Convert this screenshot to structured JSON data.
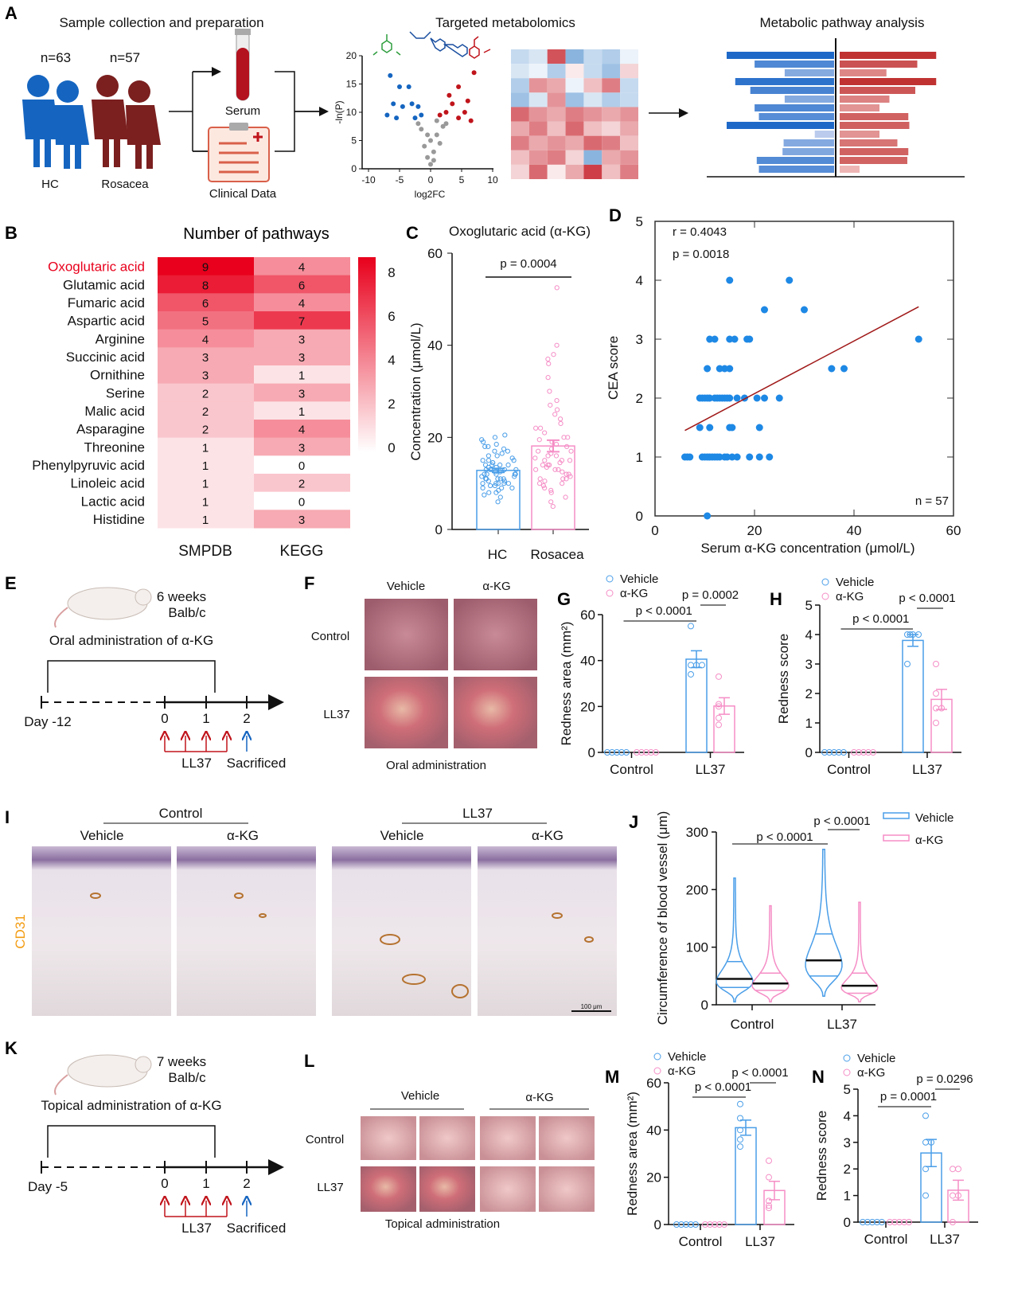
{
  "panels": {
    "A": {
      "label": "A",
      "title_left": "Sample collection and preparation",
      "n_hc": "n=63",
      "n_ros": "n=57",
      "hc": "HC",
      "rosacea": "Rosacea",
      "serum": "Serum",
      "clinical": "Clinical Data",
      "title_mid": "Targeted metabolomics",
      "title_right": "Metabolic pathway analysis"
    },
    "B": {
      "label": "B"
    },
    "C": {
      "label": "C"
    },
    "D": {
      "label": "D"
    },
    "E": {
      "label": "E",
      "age": "6 weeks",
      "strain": "Balb/c",
      "admin": "Oral administration of α-KG",
      "day": "Day -12",
      "t0": "0",
      "t1": "1",
      "t2": "2",
      "ll37": "LL37",
      "sacrificed": "Sacrificed"
    },
    "F": {
      "label": "F",
      "col1": "Vehicle",
      "col2": "α-KG",
      "row1": "Control",
      "row2": "LL37",
      "caption": "Oral administration"
    },
    "G": {
      "label": "G"
    },
    "H": {
      "label": "H"
    },
    "I": {
      "label": "I",
      "group1": "Control",
      "group2": "LL37",
      "vehicle": "Vehicle",
      "akg": "α-KG",
      "stain": "CD31",
      "scale": "100 μm"
    },
    "J": {
      "label": "J"
    },
    "K": {
      "label": "K",
      "age": "7 weeks",
      "strain": "Balb/c",
      "admin": "Topical administration of α-KG",
      "day": "Day -5",
      "t0": "0",
      "t1": "1",
      "t2": "2",
      "ll37": "LL37",
      "sacrificed": "Sacrificed"
    },
    "L": {
      "label": "L",
      "col1": "Vehicle",
      "col2": "α-KG",
      "row1": "Control",
      "row2": "LL37",
      "caption": "Topical administration"
    },
    "M": {
      "label": "M"
    },
    "N": {
      "label": "N"
    }
  },
  "colors": {
    "blue": "#4a9ee8",
    "pink": "#f58ec6",
    "red": "#e8001c",
    "dot_blue": "#1e88e5",
    "fit_line": "#a01818",
    "orange": "#f39c12"
  },
  "chart_data": [
    {
      "panel": "A-volcano",
      "type": "scatter",
      "xlabel": "log2FC",
      "ylabel": "-ln(P)",
      "xlim": [
        -10,
        10
      ],
      "ylim": [
        0,
        20
      ],
      "xticks": [
        "-10",
        "-5",
        "0",
        "5",
        "10"
      ],
      "yticks": [
        "0",
        "5",
        "10",
        "15",
        "20"
      ],
      "down": [
        [
          -6.5,
          16.5
        ],
        [
          -5,
          14.5
        ],
        [
          -3.5,
          14.5
        ],
        [
          -6,
          11.5
        ],
        [
          -4.5,
          11
        ],
        [
          -3,
          11.5
        ],
        [
          -2,
          11
        ],
        [
          -7,
          9.5
        ],
        [
          -5.5,
          9
        ],
        [
          -2.5,
          9
        ],
        [
          -1.5,
          9.5
        ]
      ],
      "up": [
        [
          7,
          17
        ],
        [
          4.5,
          14.5
        ],
        [
          3,
          13
        ],
        [
          6,
          12
        ],
        [
          3.5,
          11.5
        ],
        [
          5.5,
          10
        ],
        [
          2.5,
          10
        ],
        [
          4.5,
          9
        ],
        [
          6.5,
          8.5
        ],
        [
          1.5,
          9.5
        ]
      ],
      "ns": [
        [
          -1.5,
          7
        ],
        [
          -0.5,
          6
        ],
        [
          0,
          5
        ],
        [
          1,
          6
        ],
        [
          2,
          7.5
        ],
        [
          -1,
          4
        ],
        [
          0.5,
          3
        ],
        [
          1.5,
          4.5
        ],
        [
          -0.5,
          2
        ],
        [
          0.5,
          1.5
        ],
        [
          0,
          0.8
        ],
        [
          -2,
          8
        ],
        [
          2.5,
          8
        ],
        [
          1,
          8.5
        ]
      ]
    },
    {
      "panel": "A-heatmap",
      "type": "heatmap",
      "values": [
        [
          -0.3,
          -0.2,
          0.8,
          -0.6,
          -0.3,
          -0.4,
          -0.1
        ],
        [
          -0.2,
          -0.1,
          -0.4,
          0.1,
          -0.3,
          -0.5,
          0.2
        ],
        [
          -0.4,
          0.5,
          0.4,
          -0.1,
          0.3,
          0.6,
          -0.3
        ],
        [
          -0.5,
          -0.2,
          0.5,
          -0.5,
          -0.2,
          -0.4,
          -0.3
        ],
        [
          0.7,
          0.5,
          0.4,
          0.6,
          0.5,
          0.4,
          0.5
        ],
        [
          0.4,
          0.6,
          0.3,
          0.7,
          0.3,
          0.2,
          0.4
        ],
        [
          0.6,
          0.4,
          0.5,
          0.4,
          0.7,
          0.6,
          0.3
        ],
        [
          0.3,
          0.5,
          0.6,
          0.2,
          -0.6,
          0.4,
          0.5
        ],
        [
          0.2,
          0.7,
          0.1,
          0.4,
          0.9,
          0.3,
          0.6
        ]
      ]
    },
    {
      "panel": "A-pathway",
      "type": "bar",
      "left": [
        1,
        0.74,
        0.46,
        0.92,
        0.78,
        0.46,
        0.74,
        0.7,
        1,
        0.18,
        0.47,
        0.48,
        0.72,
        0.7
      ],
      "right": [
        0.97,
        0.78,
        0.47,
        0.97,
        0.76,
        0.5,
        0.4,
        0.69,
        0.7,
        0.4,
        0.58,
        0.69,
        0.68,
        0.2
      ]
    },
    {
      "panel": "B",
      "type": "heatmap",
      "title": "Number of pathways",
      "columns": [
        "SMPDB",
        "KEGG"
      ],
      "highlight": "Oxoglutaric acid",
      "rows": [
        "Oxoglutaric acid",
        "Glutamic acid",
        "Fumaric acid",
        "Aspartic acid",
        "Arginine",
        "Succinic acid",
        "Ornithine",
        "Serine",
        "Malic acid",
        "Asparagine",
        "Threonine",
        "Phenylpyruvic acid",
        "Linoleic acid",
        "Lactic acid",
        "Histidine"
      ],
      "values": [
        [
          9,
          4
        ],
        [
          8,
          6
        ],
        [
          6,
          4
        ],
        [
          5,
          7
        ],
        [
          4,
          3
        ],
        [
          3,
          3
        ],
        [
          3,
          1
        ],
        [
          2,
          3
        ],
        [
          2,
          1
        ],
        [
          2,
          4
        ],
        [
          1,
          3
        ],
        [
          1,
          0
        ],
        [
          1,
          2
        ],
        [
          1,
          0
        ],
        [
          1,
          3
        ]
      ],
      "colorbar_ticks": [
        "0",
        "2",
        "4",
        "6",
        "8"
      ],
      "vmin": 0,
      "vmax": 9
    },
    {
      "panel": "C",
      "type": "bar",
      "title": "Oxoglutaric acid (α-KG)",
      "ylabel": "Concentration (μmol/L)",
      "ylim": [
        0,
        60
      ],
      "yticks": [
        "0",
        "20",
        "40",
        "60"
      ],
      "categories": [
        "HC",
        "Rosacea"
      ],
      "pvalue": "p = 0.0004",
      "HC": [
        6,
        7,
        7.5,
        8,
        8,
        8.5,
        9,
        9,
        9,
        9.5,
        9.5,
        10,
        10,
        10,
        10,
        10.5,
        10.5,
        11,
        11,
        11,
        11,
        11.5,
        11.5,
        12,
        12,
        12,
        12,
        12,
        12.5,
        12.5,
        13,
        13,
        13,
        13,
        13.5,
        13.5,
        14,
        14,
        14,
        14,
        14.5,
        14.5,
        15,
        15,
        15,
        15.5,
        16,
        16,
        16.5,
        17,
        17,
        17.5,
        18,
        18,
        18.5,
        19,
        19.5,
        20,
        20.5,
        11,
        12,
        13,
        10
      ],
      "Rosacea": [
        5,
        6,
        7,
        8,
        8.5,
        9,
        9.5,
        10,
        10,
        10.5,
        11,
        11,
        11.5,
        12,
        12,
        12.5,
        13,
        13,
        13,
        13.5,
        14,
        14,
        14,
        14.5,
        15,
        15,
        15,
        15.5,
        16,
        16,
        16.5,
        17,
        17,
        17.5,
        18,
        18.5,
        19,
        19.5,
        20,
        20,
        21,
        22,
        22,
        23,
        24,
        25,
        26,
        27,
        28,
        30,
        33,
        36,
        37,
        38,
        40,
        52.5,
        11
      ]
    },
    {
      "panel": "D",
      "type": "scatter",
      "xlabel": "Serum α-KG concentration  (μmol/L)",
      "ylabel": "CEA score",
      "xlim": [
        0,
        60
      ],
      "ylim": [
        0,
        5
      ],
      "xticks": [
        "0",
        "20",
        "40",
        "60"
      ],
      "yticks": [
        "0",
        "1",
        "2",
        "3",
        "4",
        "5"
      ],
      "r": "r = 0.4043",
      "p": "p = 0.0018",
      "n": "n = 57",
      "points": [
        [
          15,
          4
        ],
        [
          27,
          4
        ],
        [
          22,
          3.5
        ],
        [
          30,
          3.5
        ],
        [
          11,
          3
        ],
        [
          12,
          3
        ],
        [
          15,
          3
        ],
        [
          16,
          3
        ],
        [
          18.5,
          3
        ],
        [
          19,
          3
        ],
        [
          53,
          3
        ],
        [
          10.5,
          2.5
        ],
        [
          13,
          2.5
        ],
        [
          14,
          2.5
        ],
        [
          15,
          2.5
        ],
        [
          35.5,
          2.5
        ],
        [
          38,
          2.5
        ],
        [
          9,
          2
        ],
        [
          9.5,
          2
        ],
        [
          10,
          2
        ],
        [
          10.5,
          2
        ],
        [
          11,
          2
        ],
        [
          12,
          2
        ],
        [
          12.5,
          2
        ],
        [
          13,
          2
        ],
        [
          13.5,
          2
        ],
        [
          14,
          2
        ],
        [
          14.5,
          2
        ],
        [
          15,
          2
        ],
        [
          16.5,
          2
        ],
        [
          18,
          2
        ],
        [
          20.5,
          2
        ],
        [
          22,
          2
        ],
        [
          25,
          2
        ],
        [
          9,
          1.5
        ],
        [
          11,
          1.5
        ],
        [
          15,
          1.5
        ],
        [
          15.5,
          1.5
        ],
        [
          21,
          1.5
        ],
        [
          6,
          1
        ],
        [
          6.5,
          1
        ],
        [
          7,
          1
        ],
        [
          9.5,
          1
        ],
        [
          10,
          1
        ],
        [
          10.5,
          1
        ],
        [
          11,
          1
        ],
        [
          11.5,
          1
        ],
        [
          12,
          1
        ],
        [
          12.5,
          1
        ],
        [
          13,
          1
        ],
        [
          14,
          1
        ],
        [
          14.5,
          1
        ],
        [
          15.5,
          1
        ],
        [
          16.5,
          1
        ],
        [
          19,
          1
        ],
        [
          21,
          1
        ],
        [
          23,
          1
        ],
        [
          10.5,
          0
        ]
      ],
      "fit": [
        [
          6,
          1.45
        ],
        [
          53,
          3.55
        ]
      ]
    },
    {
      "panel": "G",
      "type": "bar",
      "ylabel": "Redness area (mm²)",
      "ylim": [
        0,
        60
      ],
      "yticks": [
        "0",
        "20",
        "40",
        "60"
      ],
      "categories": [
        "Control",
        "LL37"
      ],
      "legend": [
        "Vehicle",
        "α-KG"
      ],
      "p1": "p < 0.0001",
      "p2": "p = 0.0002",
      "series": [
        {
          "name": "Vehicle",
          "Control": [
            0,
            0,
            0,
            0,
            0
          ],
          "LL37": [
            55,
            38,
            38,
            38,
            34
          ]
        },
        {
          "name": "α-KG",
          "Control": [
            0,
            0,
            0,
            0,
            0
          ],
          "LL37": [
            33,
            21,
            20,
            15,
            12
          ]
        }
      ]
    },
    {
      "panel": "H",
      "type": "bar",
      "ylabel": "Redness score",
      "ylim": [
        0,
        5
      ],
      "yticks": [
        "0",
        "1",
        "2",
        "3",
        "4",
        "5"
      ],
      "categories": [
        "Control",
        "LL37"
      ],
      "legend": [
        "Vehicle",
        "α-KG"
      ],
      "p1": "p < 0.0001",
      "p2": "p < 0.0001",
      "series": [
        {
          "name": "Vehicle",
          "Control": [
            0,
            0,
            0,
            0,
            0
          ],
          "LL37": [
            4,
            4,
            4,
            4,
            3
          ]
        },
        {
          "name": "α-KG",
          "Control": [
            0,
            0,
            0,
            0,
            0
          ],
          "LL37": [
            3,
            2,
            1.5,
            1.5,
            1
          ]
        }
      ]
    },
    {
      "panel": "J",
      "type": "violin",
      "ylabel": "Circumference of blood vessel (μm)",
      "ylim": [
        0,
        300
      ],
      "yticks": [
        "0",
        "100",
        "200",
        "300"
      ],
      "categories": [
        "Control",
        "LL37"
      ],
      "legend": [
        "Vehicle",
        "α-KG"
      ],
      "p1": "p < 0.0001",
      "p2": "p < 0.0001",
      "series": [
        {
          "name": "Vehicle",
          "Control": {
            "min": 5,
            "q1": 30,
            "median": 45,
            "q3": 75,
            "max": 220
          },
          "LL37": {
            "min": 15,
            "q1": 50,
            "median": 77,
            "q3": 123,
            "max": 270
          }
        },
        {
          "name": "α-KG",
          "Control": {
            "min": 5,
            "q1": 25,
            "median": 37,
            "q3": 55,
            "max": 172
          },
          "LL37": {
            "min": 5,
            "q1": 20,
            "median": 33,
            "q3": 55,
            "max": 178
          }
        }
      ]
    },
    {
      "panel": "M",
      "type": "bar",
      "ylabel": "Redness area (mm²)",
      "ylim": [
        0,
        60
      ],
      "yticks": [
        "0",
        "20",
        "40",
        "60"
      ],
      "categories": [
        "Control",
        "LL37"
      ],
      "legend": [
        "Vehicle",
        "α-KG"
      ],
      "p1": "p < 0.0001",
      "p2": "p < 0.0001",
      "series": [
        {
          "name": "Vehicle",
          "Control": [
            0,
            0,
            0,
            0,
            0
          ],
          "LL37": [
            51,
            45,
            40,
            36,
            33
          ]
        },
        {
          "name": "α-KG",
          "Control": [
            0,
            0,
            0,
            0,
            0
          ],
          "LL37": [
            27,
            20,
            10,
            8,
            7
          ]
        }
      ]
    },
    {
      "panel": "N",
      "type": "bar",
      "ylabel": "Redness score",
      "ylim": [
        0,
        5
      ],
      "yticks": [
        "0",
        "1",
        "2",
        "3",
        "4",
        "5"
      ],
      "categories": [
        "Control",
        "LL37"
      ],
      "legend": [
        "Vehicle",
        "α-KG"
      ],
      "p1": "p = 0.0001",
      "p2": "p = 0.0296",
      "series": [
        {
          "name": "Vehicle",
          "Control": [
            0,
            0,
            0,
            0,
            0
          ],
          "LL37": [
            4,
            3,
            3,
            2,
            1
          ]
        },
        {
          "name": "α-KG",
          "Control": [
            0,
            0,
            0,
            0,
            0
          ],
          "LL37": [
            2,
            2,
            1,
            1,
            0
          ]
        }
      ]
    }
  ]
}
